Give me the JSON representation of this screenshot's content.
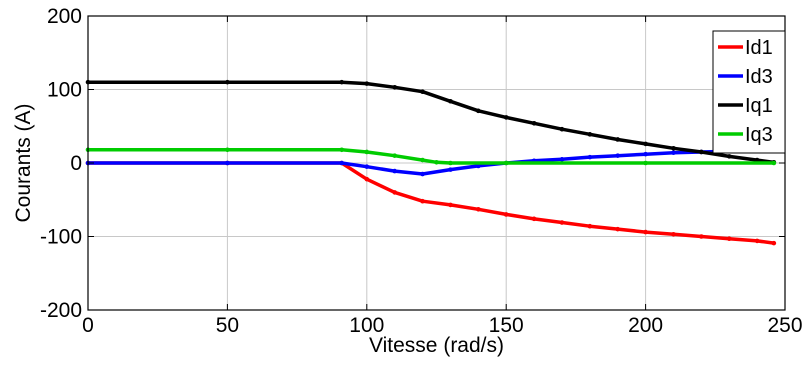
{
  "chart_data": {
    "type": "line",
    "xlabel": "Vitesse (rad/s)",
    "ylabel": "Courants (A)",
    "xlim": [
      0,
      250
    ],
    "ylim": [
      -200,
      200
    ],
    "xticks": [
      0,
      50,
      100,
      150,
      200,
      250
    ],
    "yticks": [
      -200,
      -100,
      0,
      100,
      200
    ],
    "grid": true,
    "legend_position": "top-right",
    "series": [
      {
        "name": "Id1",
        "color": "#ff0000",
        "x": [
          0,
          50,
          91,
          100,
          110,
          120,
          130,
          140,
          150,
          160,
          170,
          180,
          190,
          200,
          210,
          220,
          230,
          240,
          246
        ],
        "y": [
          0,
          0,
          0,
          -22,
          -40,
          -52,
          -57,
          -63,
          -70,
          -76,
          -81,
          -86,
          -90,
          -94,
          -97,
          -100,
          -103,
          -106,
          -109
        ]
      },
      {
        "name": "Id3",
        "color": "#0000ff",
        "x": [
          0,
          50,
          91,
          100,
          110,
          120,
          130,
          140,
          150,
          160,
          170,
          180,
          190,
          200,
          210,
          220,
          230,
          240,
          246
        ],
        "y": [
          0,
          0,
          0,
          -5,
          -11,
          -15,
          -9,
          -4,
          0,
          3,
          5,
          8,
          10,
          12,
          14,
          15,
          16,
          17,
          18
        ]
      },
      {
        "name": "Iq1",
        "color": "#000000",
        "x": [
          0,
          50,
          91,
          100,
          110,
          120,
          130,
          140,
          150,
          160,
          170,
          180,
          190,
          200,
          210,
          220,
          230,
          240,
          246
        ],
        "y": [
          110,
          110,
          110,
          108,
          103,
          97,
          84,
          71,
          62,
          54,
          46,
          39,
          32,
          26,
          20,
          15,
          9,
          4,
          1
        ]
      },
      {
        "name": "Iq3",
        "color": "#00cc00",
        "x": [
          0,
          50,
          91,
          100,
          110,
          120,
          125,
          130,
          150,
          200,
          246
        ],
        "y": [
          18,
          18,
          18,
          15,
          10,
          4,
          1,
          0,
          0,
          0,
          0
        ]
      }
    ]
  }
}
